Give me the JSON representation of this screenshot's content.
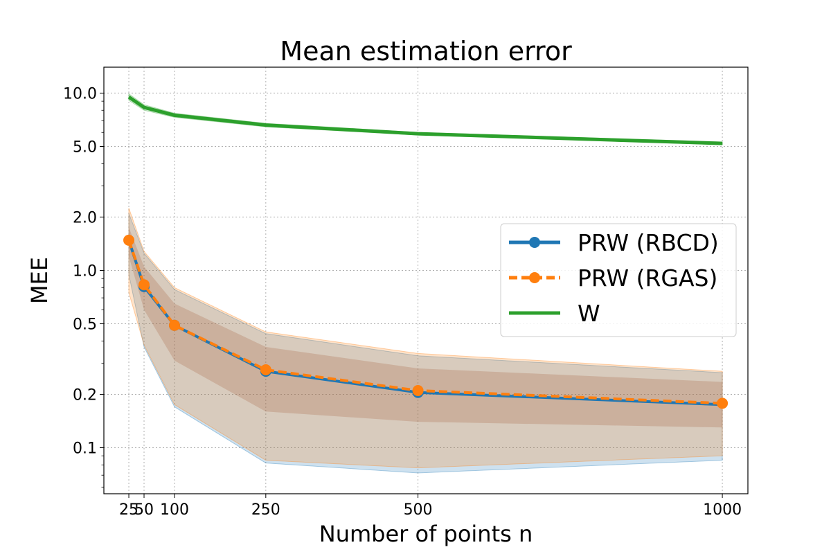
{
  "chart_data": {
    "type": "line",
    "title": "Mean estimation error",
    "xlabel": "Number of points n",
    "ylabel": "MEE",
    "yscale": "log",
    "ylim": [
      0.055,
      14.0
    ],
    "xlim": [
      -16,
      1042
    ],
    "x": [
      25,
      50,
      100,
      250,
      500,
      1000
    ],
    "xticks": [
      25,
      50,
      100,
      250,
      500,
      1000
    ],
    "xtick_labels": [
      "25",
      "50",
      "100",
      "250",
      "500",
      "1000"
    ],
    "yticks": [
      0.1,
      0.2,
      0.5,
      1.0,
      2.0,
      5.0,
      10.0
    ],
    "ytick_labels": [
      "0.1",
      "0.2",
      "0.5",
      "1.0",
      "2.0",
      "5.0",
      "10.0"
    ],
    "grid": true,
    "legend_position": "center-right",
    "series": [
      {
        "name": "PRW (RBCD)",
        "color": "#1f77b4",
        "style": "solid",
        "marker": "circle",
        "values": [
          1.48,
          0.81,
          0.49,
          0.27,
          0.205,
          0.175
        ],
        "band_lower": [
          0.95,
          0.37,
          0.17,
          0.082,
          0.072,
          0.085
        ],
        "band_upper": [
          2.1,
          1.25,
          0.78,
          0.44,
          0.33,
          0.265
        ]
      },
      {
        "name": "PRW (RGAS)",
        "color": "#ff7f0e",
        "style": "dashed",
        "marker": "circle",
        "values": [
          1.48,
          0.83,
          0.49,
          0.275,
          0.21,
          0.178
        ],
        "band_lower": [
          0.75,
          0.38,
          0.175,
          0.085,
          0.077,
          0.09
        ],
        "band_upper": [
          2.25,
          1.28,
          0.8,
          0.45,
          0.34,
          0.27
        ]
      },
      {
        "name": "W",
        "color": "#2ca02c",
        "style": "solid",
        "marker": "none",
        "values": [
          9.5,
          8.3,
          7.5,
          6.6,
          5.9,
          5.2
        ],
        "band_lower": [
          9.1,
          8.0,
          7.3,
          6.45,
          5.8,
          5.12
        ],
        "band_upper": [
          9.9,
          8.6,
          7.7,
          6.75,
          6.0,
          5.3
        ]
      }
    ],
    "inner_band": {
      "lower": [
        1.2,
        0.6,
        0.31,
        0.16,
        0.14,
        0.13
      ],
      "upper": [
        1.75,
        1.05,
        0.65,
        0.37,
        0.28,
        0.235
      ]
    }
  }
}
